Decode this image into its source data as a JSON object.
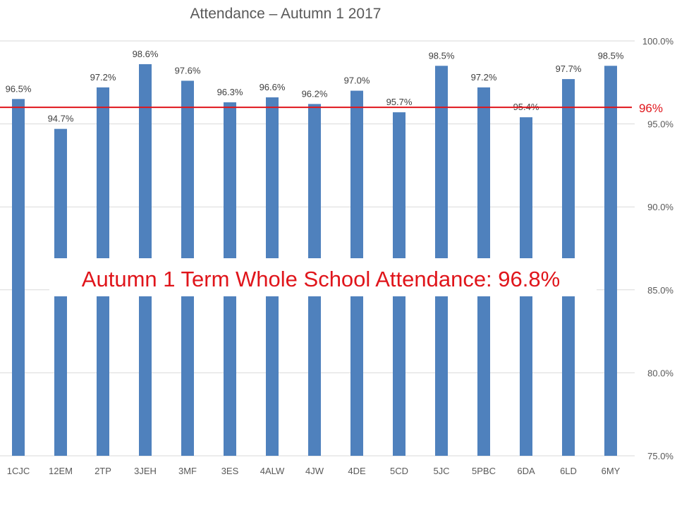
{
  "chart_data": {
    "type": "bar",
    "title": "Attendance – Autumn 1 2017",
    "categories": [
      "1CJC",
      "12EM",
      "2TP",
      "3JEH",
      "3MF",
      "3ES",
      "4ALW",
      "4JW",
      "4DE",
      "5CD",
      "5JC",
      "5PBC",
      "6DA",
      "6LD",
      "6MY"
    ],
    "values": [
      96.5,
      94.7,
      97.2,
      98.6,
      97.6,
      96.3,
      96.6,
      96.2,
      97.0,
      95.7,
      98.5,
      97.2,
      95.4,
      97.7,
      98.5
    ],
    "data_labels": [
      "96.5%",
      "94.7%",
      "97.2%",
      "98.6%",
      "97.6%",
      "96.3%",
      "96.6%",
      "96.2%",
      "97.0%",
      "95.7%",
      "98.5%",
      "97.2%",
      "95.4%",
      "97.7%",
      "98.5%"
    ],
    "ylim": [
      75,
      100
    ],
    "yticks": [
      75,
      80,
      85,
      90,
      95,
      100
    ],
    "ytick_labels": [
      "75.0%",
      "80.0%",
      "85.0%",
      "90.0%",
      "95.0%",
      "100.0%"
    ],
    "y_axis_side": "right",
    "grid": true,
    "bar_color": "#4f81bd",
    "target_line": {
      "value": 96,
      "label": "96%",
      "color": "#e0151b"
    },
    "annotation": {
      "text": "Autumn 1 Term Whole School Attendance: 96.8%",
      "color": "#e0151b"
    }
  }
}
